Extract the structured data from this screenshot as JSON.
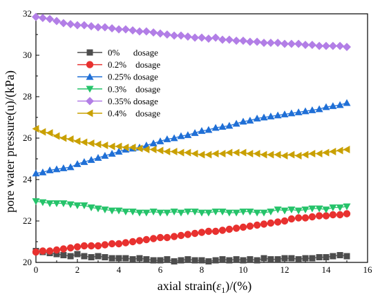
{
  "chart_data": {
    "type": "line",
    "title": "",
    "xlabel_main": "axial strain(",
    "xlabel_symbol": "ε",
    "xlabel_sub": "1",
    "xlabel_tail": ")/(%)",
    "ylabel": "pore water pressure(u)/(kPa)",
    "xlim": [
      0,
      16
    ],
    "ylim": [
      20,
      32
    ],
    "xticks": [
      "0",
      "2",
      "4",
      "6",
      "8",
      "10",
      "12",
      "14",
      "16"
    ],
    "yticks": [
      "20",
      "22",
      "24",
      "26",
      "28",
      "30",
      "32"
    ],
    "grid": false,
    "legend_position": "top-left",
    "series": [
      {
        "name": "0%      dosage",
        "color": "#4d4d4d",
        "marker": "square",
        "x": [
          0,
          0.33,
          0.67,
          1,
          1.33,
          1.67,
          2,
          2.33,
          2.67,
          3,
          3.33,
          3.67,
          4,
          4.33,
          4.67,
          5,
          5.33,
          5.67,
          6,
          6.33,
          6.67,
          7,
          7.33,
          7.67,
          8,
          8.33,
          8.67,
          9,
          9.33,
          9.67,
          10,
          10.33,
          10.67,
          11,
          11.33,
          11.67,
          12,
          12.33,
          12.67,
          13,
          13.33,
          13.67,
          14,
          14.33,
          14.67,
          15
        ],
        "y": [
          20.55,
          20.5,
          20.45,
          20.4,
          20.35,
          20.3,
          20.4,
          20.3,
          20.25,
          20.3,
          20.25,
          20.2,
          20.2,
          20.2,
          20.15,
          20.2,
          20.15,
          20.1,
          20.1,
          20.15,
          20.05,
          20.1,
          20.15,
          20.1,
          20.1,
          20.05,
          20.1,
          20.15,
          20.1,
          20.15,
          20.1,
          20.15,
          20.1,
          20.2,
          20.15,
          20.15,
          20.2,
          20.2,
          20.15,
          20.2,
          20.2,
          20.25,
          20.25,
          20.3,
          20.35,
          20.3
        ]
      },
      {
        "name": "0.2%    dosage",
        "color": "#e8312f",
        "marker": "circle",
        "x": [
          0,
          0.33,
          0.67,
          1,
          1.33,
          1.67,
          2,
          2.33,
          2.67,
          3,
          3.33,
          3.67,
          4,
          4.33,
          4.67,
          5,
          5.33,
          5.67,
          6,
          6.33,
          6.67,
          7,
          7.33,
          7.67,
          8,
          8.33,
          8.67,
          9,
          9.33,
          9.67,
          10,
          10.33,
          10.67,
          11,
          11.33,
          11.67,
          12,
          12.33,
          12.67,
          13,
          13.33,
          13.67,
          14,
          14.33,
          14.67,
          15
        ],
        "y": [
          20.5,
          20.55,
          20.55,
          20.6,
          20.65,
          20.7,
          20.75,
          20.8,
          20.8,
          20.8,
          20.85,
          20.9,
          20.9,
          20.95,
          21.0,
          21.05,
          21.1,
          21.15,
          21.2,
          21.2,
          21.25,
          21.3,
          21.35,
          21.4,
          21.45,
          21.5,
          21.5,
          21.55,
          21.6,
          21.65,
          21.7,
          21.75,
          21.8,
          21.85,
          21.9,
          21.95,
          22.0,
          22.1,
          22.15,
          22.15,
          22.2,
          22.25,
          22.25,
          22.3,
          22.3,
          22.35
        ]
      },
      {
        "name": "0.25% dosage",
        "color": "#1f6fd6",
        "marker": "triangle-up",
        "x": [
          0,
          0.33,
          0.67,
          1,
          1.33,
          1.67,
          2,
          2.33,
          2.67,
          3,
          3.33,
          3.67,
          4,
          4.33,
          4.67,
          5,
          5.33,
          5.67,
          6,
          6.33,
          6.67,
          7,
          7.33,
          7.67,
          8,
          8.33,
          8.67,
          9,
          9.33,
          9.67,
          10,
          10.33,
          10.67,
          11,
          11.33,
          11.67,
          12,
          12.33,
          12.67,
          13,
          13.33,
          13.67,
          14,
          14.33,
          14.67,
          15
        ],
        "y": [
          24.3,
          24.35,
          24.45,
          24.5,
          24.55,
          24.6,
          24.75,
          24.85,
          24.95,
          25.05,
          25.15,
          25.25,
          25.35,
          25.45,
          25.5,
          25.55,
          25.65,
          25.75,
          25.85,
          25.95,
          26.0,
          26.1,
          26.15,
          26.25,
          26.35,
          26.4,
          26.5,
          26.55,
          26.6,
          26.7,
          26.8,
          26.85,
          26.95,
          27.0,
          27.05,
          27.1,
          27.15,
          27.2,
          27.25,
          27.3,
          27.35,
          27.4,
          27.5,
          27.55,
          27.6,
          27.7
        ]
      },
      {
        "name": "0.3%    dosage",
        "color": "#25c36a",
        "marker": "triangle-down",
        "x": [
          0,
          0.33,
          0.67,
          1,
          1.33,
          1.67,
          2,
          2.33,
          2.67,
          3,
          3.33,
          3.67,
          4,
          4.33,
          4.67,
          5,
          5.33,
          5.67,
          6,
          6.33,
          6.67,
          7,
          7.33,
          7.67,
          8,
          8.33,
          8.67,
          9,
          9.33,
          9.67,
          10,
          10.33,
          10.67,
          11,
          11.33,
          11.67,
          12,
          12.33,
          12.67,
          13,
          13.33,
          13.67,
          14,
          14.33,
          14.67,
          15
        ],
        "y": [
          22.95,
          22.9,
          22.85,
          22.85,
          22.85,
          22.8,
          22.75,
          22.75,
          22.65,
          22.6,
          22.55,
          22.5,
          22.5,
          22.45,
          22.45,
          22.4,
          22.4,
          22.45,
          22.4,
          22.4,
          22.45,
          22.4,
          22.45,
          22.45,
          22.4,
          22.4,
          22.45,
          22.45,
          22.4,
          22.4,
          22.45,
          22.45,
          22.4,
          22.4,
          22.45,
          22.55,
          22.5,
          22.55,
          22.5,
          22.55,
          22.6,
          22.6,
          22.55,
          22.65,
          22.65,
          22.7
        ]
      },
      {
        "name": "0.35% dosage",
        "color": "#b27ee6",
        "marker": "diamond",
        "x": [
          0,
          0.33,
          0.67,
          1,
          1.33,
          1.67,
          2,
          2.33,
          2.67,
          3,
          3.33,
          3.67,
          4,
          4.33,
          4.67,
          5,
          5.33,
          5.67,
          6,
          6.33,
          6.67,
          7,
          7.33,
          7.67,
          8,
          8.33,
          8.67,
          9,
          9.33,
          9.67,
          10,
          10.33,
          10.67,
          11,
          11.33,
          11.67,
          12,
          12.33,
          12.67,
          13,
          13.33,
          13.67,
          14,
          14.33,
          14.67,
          15
        ],
        "y": [
          31.85,
          31.8,
          31.75,
          31.65,
          31.55,
          31.5,
          31.45,
          31.45,
          31.4,
          31.35,
          31.35,
          31.3,
          31.25,
          31.25,
          31.2,
          31.15,
          31.15,
          31.1,
          31.05,
          31.0,
          30.95,
          30.95,
          30.9,
          30.85,
          30.85,
          30.8,
          30.85,
          30.75,
          30.75,
          30.7,
          30.7,
          30.65,
          30.65,
          30.6,
          30.6,
          30.6,
          30.55,
          30.55,
          30.55,
          30.5,
          30.5,
          30.45,
          30.45,
          30.45,
          30.45,
          30.4
        ]
      },
      {
        "name": "0.4%    dosage",
        "color": "#c9a000",
        "marker": "triangle-left",
        "x": [
          0,
          0.33,
          0.67,
          1,
          1.33,
          1.67,
          2,
          2.33,
          2.67,
          3,
          3.33,
          3.67,
          4,
          4.33,
          4.67,
          5,
          5.33,
          5.67,
          6,
          6.33,
          6.67,
          7,
          7.33,
          7.67,
          8,
          8.33,
          8.67,
          9,
          9.33,
          9.67,
          10,
          10.33,
          10.67,
          11,
          11.33,
          11.67,
          12,
          12.33,
          12.67,
          13,
          13.33,
          13.67,
          14,
          14.33,
          14.67,
          15
        ],
        "y": [
          26.45,
          26.3,
          26.25,
          26.1,
          26.0,
          25.95,
          25.85,
          25.8,
          25.75,
          25.7,
          25.65,
          25.6,
          25.6,
          25.55,
          25.55,
          25.5,
          25.45,
          25.45,
          25.4,
          25.35,
          25.35,
          25.3,
          25.3,
          25.25,
          25.2,
          25.2,
          25.25,
          25.25,
          25.3,
          25.3,
          25.3,
          25.25,
          25.25,
          25.2,
          25.2,
          25.2,
          25.15,
          25.2,
          25.15,
          25.2,
          25.25,
          25.25,
          25.3,
          25.35,
          25.4,
          25.45
        ]
      }
    ]
  }
}
